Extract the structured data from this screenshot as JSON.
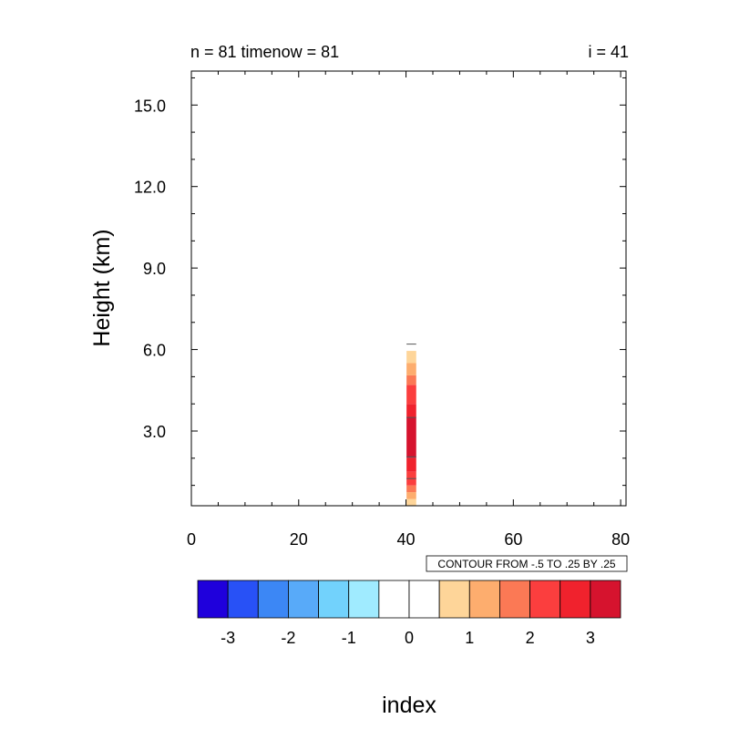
{
  "chart_data": {
    "type": "heatmap",
    "title_left": "n = 81  timenow = 81",
    "title_right": "i = 41",
    "xlabel": "index",
    "ylabel": "Height (km)",
    "xlim": [
      0,
      81
    ],
    "ylim": [
      0.25,
      16.25
    ],
    "x_ticks": [
      0,
      20,
      40,
      60,
      80
    ],
    "x_tick_labels": [
      "0",
      "20",
      "40",
      "60",
      "80"
    ],
    "y_ticks": [
      3,
      6,
      9,
      12,
      15
    ],
    "y_tick_labels": [
      "3.0",
      "6.0",
      "9.0",
      "12.0",
      "15.0"
    ],
    "contour_info": "CONTOUR FROM -.5 TO .25 BY .25",
    "colorbar": {
      "colors": [
        "#1f00dc",
        "#2851f6",
        "#3c87f5",
        "#58aaf9",
        "#72d2fc",
        "#a0ebff",
        "#ffffff",
        "#ffffff",
        "#fed599",
        "#fdad6e",
        "#fb7955",
        "#fb3e3e",
        "#f0222d",
        "#d6132e"
      ],
      "labels": [
        "-3",
        "-2",
        "-1",
        "0",
        "1",
        "2",
        "3"
      ]
    },
    "column": {
      "x_center": 41,
      "x_width": 1.8,
      "cells": [
        {
          "z0": 0.25,
          "z1": 0.5,
          "color": "#fed599"
        },
        {
          "z0": 0.5,
          "z1": 0.75,
          "color": "#fdad6e"
        },
        {
          "z0": 0.75,
          "z1": 1.0,
          "color": "#fb7955"
        },
        {
          "z0": 1.0,
          "z1": 1.5,
          "color": "#fb3e3e"
        },
        {
          "z0": 1.5,
          "z1": 2.0,
          "color": "#f0222d"
        },
        {
          "z0": 2.0,
          "z1": 3.5,
          "color": "#d6132e"
        },
        {
          "z0": 3.5,
          "z1": 4.0,
          "color": "#f0222d"
        },
        {
          "z0": 4.0,
          "z1": 4.7,
          "color": "#fb3e3e"
        },
        {
          "z0": 4.7,
          "z1": 5.05,
          "color": "#fb7955"
        },
        {
          "z0": 5.05,
          "z1": 5.5,
          "color": "#fdad6e"
        },
        {
          "z0": 5.5,
          "z1": 5.95,
          "color": "#fed599"
        }
      ],
      "contour_lines": [
        1.25,
        2.05,
        3.5,
        6.2
      ]
    }
  }
}
